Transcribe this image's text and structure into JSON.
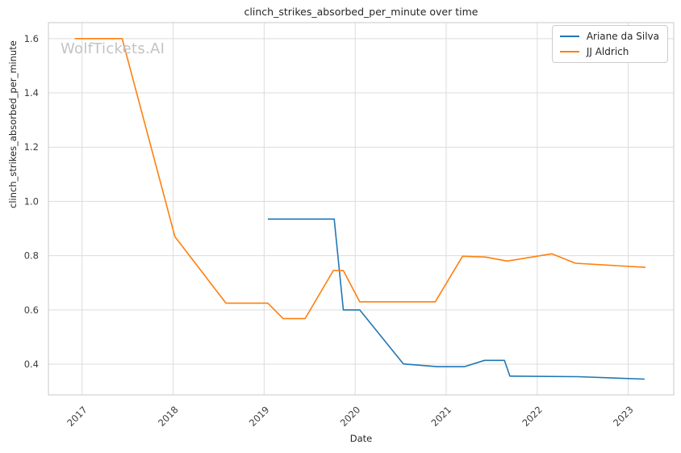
{
  "watermark": "WolfTickets.AI",
  "chart_data": {
    "type": "line",
    "title": "clinch_strikes_absorbed_per_minute over time",
    "xlabel": "Date",
    "ylabel": "clinch_strikes_absorbed_per_minute",
    "xlim": [
      2016.63,
      2023.5
    ],
    "ylim": [
      0.287,
      1.659
    ],
    "x_ticks": [
      2017,
      2018,
      2019,
      2020,
      2021,
      2022,
      2023
    ],
    "x_tick_labels": [
      "2017",
      "2018",
      "2019",
      "2020",
      "2021",
      "2022",
      "2023"
    ],
    "y_ticks": [
      0.4,
      0.6,
      0.8,
      1.0,
      1.2,
      1.4,
      1.6
    ],
    "y_tick_labels": [
      "0.4",
      "0.6",
      "0.8",
      "1.0",
      "1.2",
      "1.4",
      "1.6"
    ],
    "grid": true,
    "legend_position": "upper right",
    "series": [
      {
        "name": "Ariane da Silva",
        "color": "#1f77b4",
        "points": [
          [
            2019.04,
            0.935
          ],
          [
            2019.77,
            0.935
          ],
          [
            2019.87,
            0.6
          ],
          [
            2020.05,
            0.6
          ],
          [
            2020.53,
            0.401
          ],
          [
            2020.9,
            0.391
          ],
          [
            2021.2,
            0.391
          ],
          [
            2021.42,
            0.414
          ],
          [
            2021.64,
            0.414
          ],
          [
            2021.7,
            0.356
          ],
          [
            2022.45,
            0.354
          ],
          [
            2023.18,
            0.345
          ]
        ]
      },
      {
        "name": "JJ Aldrich",
        "color": "#ff7f0e",
        "points": [
          [
            2016.92,
            1.6
          ],
          [
            2017.44,
            1.6
          ],
          [
            2018.02,
            0.87
          ],
          [
            2018.58,
            0.625
          ],
          [
            2019.04,
            0.625
          ],
          [
            2019.21,
            0.568
          ],
          [
            2019.45,
            0.568
          ],
          [
            2019.76,
            0.745
          ],
          [
            2019.87,
            0.745
          ],
          [
            2020.05,
            0.63
          ],
          [
            2020.88,
            0.63
          ],
          [
            2021.18,
            0.798
          ],
          [
            2021.43,
            0.795
          ],
          [
            2021.67,
            0.78
          ],
          [
            2022.16,
            0.807
          ],
          [
            2022.42,
            0.772
          ],
          [
            2023.19,
            0.757
          ]
        ]
      }
    ]
  },
  "colors": {
    "background": "#ffffff",
    "grid": "#dcdcdc",
    "spine": "#c9c9c9",
    "text": "#262626",
    "tick_text": "#3d3d3d",
    "watermark": "#c3c3c3"
  }
}
